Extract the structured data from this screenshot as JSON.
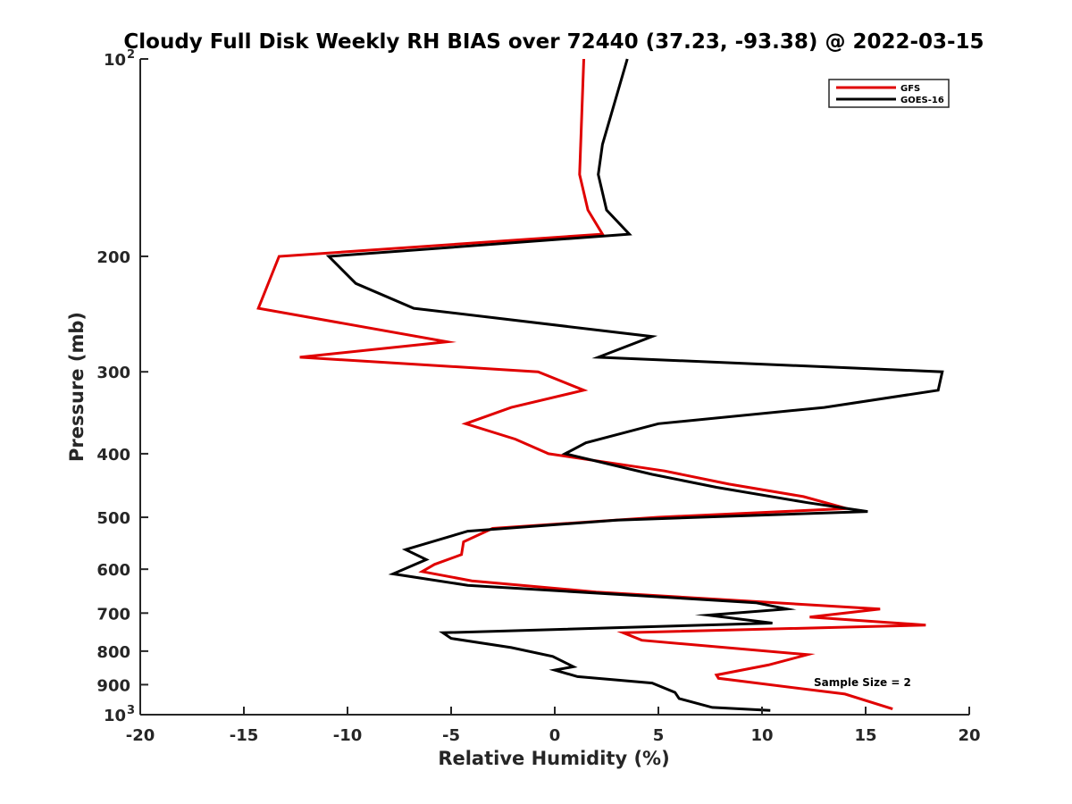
{
  "chart_data": {
    "type": "line",
    "title": "Cloudy Full Disk Weekly RH BIAS over 72440 (37.23, -93.38) @ 2022-03-15",
    "xlabel": "Relative Humidity (%)",
    "ylabel": "Pressure (mb)",
    "xlim": [
      -20,
      20
    ],
    "ylim": [
      100,
      1000
    ],
    "yscale": "log",
    "y_reversed": true,
    "grid": false,
    "legend_position": "top-right",
    "x_ticks": [
      {
        "value": -20,
        "label": "-20"
      },
      {
        "value": -15,
        "label": "-15"
      },
      {
        "value": -10,
        "label": "-10"
      },
      {
        "value": -5,
        "label": "-5"
      },
      {
        "value": 0,
        "label": "0"
      },
      {
        "value": 5,
        "label": "5"
      },
      {
        "value": 10,
        "label": "10"
      },
      {
        "value": 15,
        "label": "15"
      },
      {
        "value": 20,
        "label": "20"
      }
    ],
    "y_ticks": [
      {
        "value": 100,
        "label": "10",
        "exponent": "2"
      },
      {
        "value": 200,
        "label": "200"
      },
      {
        "value": 300,
        "label": "300"
      },
      {
        "value": 400,
        "label": "400"
      },
      {
        "value": 500,
        "label": "500"
      },
      {
        "value": 600,
        "label": "600"
      },
      {
        "value": 700,
        "label": "700"
      },
      {
        "value": 800,
        "label": "800"
      },
      {
        "value": 900,
        "label": "900"
      },
      {
        "value": 1000,
        "label": "10",
        "exponent": "3"
      }
    ],
    "series": [
      {
        "name": "GFS",
        "color": "#e00000",
        "points": [
          [
            1.4,
            100
          ],
          [
            1.2,
            150
          ],
          [
            1.6,
            170
          ],
          [
            2.3,
            185
          ],
          [
            -13.3,
            200
          ],
          [
            -13.7,
            215
          ],
          [
            -14.3,
            240
          ],
          [
            -5.2,
            270
          ],
          [
            -12.3,
            285
          ],
          [
            -0.8,
            300
          ],
          [
            1.4,
            320
          ],
          [
            -2.1,
            340
          ],
          [
            -4.3,
            360
          ],
          [
            -1.9,
            380
          ],
          [
            -0.3,
            400
          ],
          [
            5.3,
            425
          ],
          [
            8.4,
            445
          ],
          [
            12.0,
            465
          ],
          [
            14.1,
            485
          ],
          [
            5.0,
            500
          ],
          [
            -3.0,
            520
          ],
          [
            -4.4,
            545
          ],
          [
            -4.5,
            570
          ],
          [
            -5.8,
            590
          ],
          [
            -6.4,
            605
          ],
          [
            -4.0,
            625
          ],
          [
            2.0,
            650
          ],
          [
            15.7,
            690
          ],
          [
            12.3,
            710
          ],
          [
            17.9,
            730
          ],
          [
            3.3,
            750
          ],
          [
            4.2,
            770
          ],
          [
            12.2,
            810
          ],
          [
            10.3,
            840
          ],
          [
            7.8,
            870
          ],
          [
            7.9,
            880
          ],
          [
            14.0,
            930
          ],
          [
            16.3,
            980
          ]
        ]
      },
      {
        "name": "GOES-16",
        "color": "#000000",
        "points": [
          [
            3.5,
            100
          ],
          [
            2.3,
            135
          ],
          [
            2.1,
            150
          ],
          [
            2.5,
            170
          ],
          [
            3.6,
            185
          ],
          [
            -10.9,
            200
          ],
          [
            -9.6,
            220
          ],
          [
            -6.8,
            240
          ],
          [
            4.7,
            265
          ],
          [
            2.1,
            285
          ],
          [
            18.7,
            300
          ],
          [
            18.5,
            320
          ],
          [
            13.0,
            340
          ],
          [
            5.0,
            360
          ],
          [
            1.5,
            385
          ],
          [
            0.5,
            400
          ],
          [
            4.7,
            430
          ],
          [
            7.8,
            450
          ],
          [
            12.2,
            475
          ],
          [
            15.1,
            490
          ],
          [
            3.0,
            505
          ],
          [
            -4.2,
            525
          ],
          [
            -7.2,
            560
          ],
          [
            -6.2,
            580
          ],
          [
            -7.8,
            610
          ],
          [
            -4.2,
            635
          ],
          [
            9.7,
            675
          ],
          [
            11.2,
            690
          ],
          [
            7.4,
            705
          ],
          [
            10.5,
            725
          ],
          [
            -5.4,
            750
          ],
          [
            -5.0,
            765
          ],
          [
            -2.1,
            790
          ],
          [
            -0.1,
            815
          ],
          [
            0.9,
            845
          ],
          [
            0.0,
            855
          ],
          [
            1.1,
            875
          ],
          [
            4.7,
            895
          ],
          [
            5.8,
            925
          ],
          [
            6.0,
            945
          ],
          [
            7.6,
            975
          ],
          [
            10.4,
            985
          ]
        ]
      }
    ],
    "annotations": [
      {
        "text": "Sample Size = 2",
        "x": 12.5,
        "y": 905
      }
    ]
  }
}
